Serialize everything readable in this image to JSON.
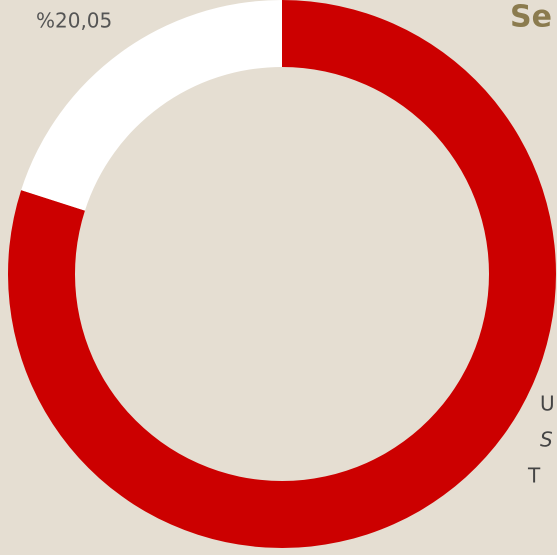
{
  "chart_data": {
    "type": "pie",
    "hole": true,
    "title": "Se",
    "categories": [
      null,
      null
    ],
    "values": [
      20.05,
      79.95
    ],
    "value_labels": [
      "%20,05",
      null
    ],
    "colors": [
      "#ffffff",
      "#cc0000"
    ],
    "annotations": [
      "U",
      "S",
      "T"
    ]
  }
}
